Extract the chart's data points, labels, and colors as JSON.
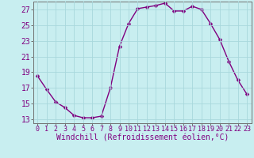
{
  "x": [
    0,
    1,
    2,
    3,
    4,
    5,
    6,
    7,
    8,
    9,
    10,
    11,
    12,
    13,
    14,
    15,
    16,
    17,
    18,
    19,
    20,
    21,
    22,
    23
  ],
  "y": [
    18.5,
    16.8,
    15.2,
    14.5,
    13.5,
    13.2,
    13.2,
    13.4,
    17.0,
    22.3,
    25.2,
    27.1,
    27.3,
    27.5,
    27.8,
    26.8,
    26.8,
    27.4,
    27.0,
    25.2,
    23.2,
    20.4,
    18.0,
    16.2
  ],
  "xlim": [
    -0.5,
    23.5
  ],
  "ylim": [
    12.5,
    28.0
  ],
  "yticks": [
    13,
    15,
    17,
    19,
    21,
    23,
    25,
    27
  ],
  "xticks": [
    0,
    1,
    2,
    3,
    4,
    5,
    6,
    7,
    8,
    9,
    10,
    11,
    12,
    13,
    14,
    15,
    16,
    17,
    18,
    19,
    20,
    21,
    22,
    23
  ],
  "xlabel": "Windchill (Refroidissement éolien,°C)",
  "line_color": "#800080",
  "marker": "D",
  "marker_size": 2.5,
  "bg_color": "#c8eef0",
  "grid_color": "#a8d8dc",
  "axis_color": "#707070",
  "label_color": "#800080",
  "tick_color": "#800080",
  "xlabel_fontsize": 7.0,
  "ytick_fontsize": 7.0,
  "xtick_fontsize": 6.0,
  "line_width": 1.0
}
